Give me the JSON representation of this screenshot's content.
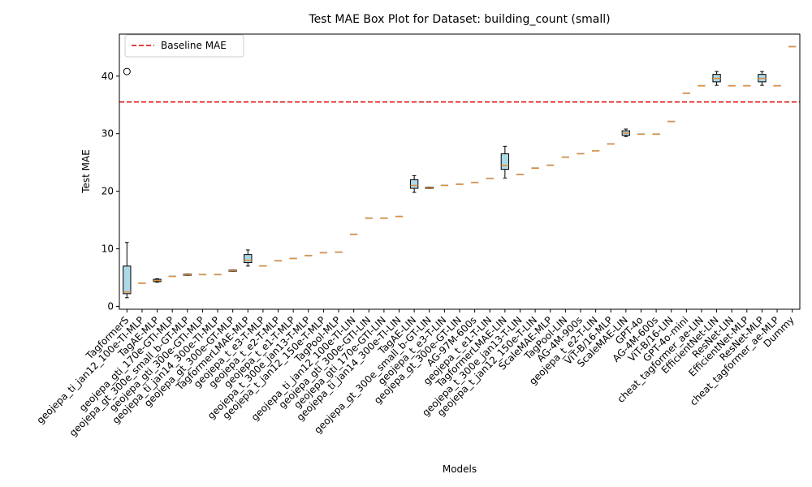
{
  "chart_data": {
    "type": "box",
    "title": "Test MAE Box Plot for Dataset: building_count (small)",
    "xlabel": "Models",
    "ylabel": "Test MAE",
    "ylim": [
      -0.5,
      47.3
    ],
    "yticks": [
      0,
      10,
      20,
      30,
      40
    ],
    "grid": false,
    "legend": {
      "placement": "top-left",
      "entries": [
        {
          "label": "Baseline MAE",
          "color": "#dd0000",
          "style": "dashed"
        }
      ]
    },
    "baseline": {
      "name": "Baseline MAE",
      "value": 35.5
    },
    "box_color": "#add8e6",
    "median_color": "#e08c3a",
    "boxes": [
      {
        "label": "TagformerS",
        "whislo": 1.5,
        "q1": 2.2,
        "med": 2.5,
        "q3": 7.0,
        "whishi": 11.1,
        "fliers": [
          40.8
        ]
      },
      {
        "label": "geojepa_ti_jan12_100e-TI-MLP",
        "whislo": 4.0,
        "q1": 4.0,
        "med": 4.0,
        "q3": 4.0,
        "whishi": 4.0,
        "fliers": []
      },
      {
        "label": "TagAE-MLP",
        "whislo": 4.2,
        "q1": 4.3,
        "med": 4.5,
        "q3": 4.7,
        "whishi": 4.8,
        "fliers": []
      },
      {
        "label": "geojepa_gti_170e-GTI-MLP",
        "whislo": 5.2,
        "q1": 5.2,
        "med": 5.2,
        "q3": 5.2,
        "whishi": 5.2,
        "fliers": []
      },
      {
        "label": "geojepa_gt_300e_small_b-GT-MLP",
        "whislo": 5.4,
        "q1": 5.4,
        "med": 5.5,
        "q3": 5.6,
        "whishi": 5.6,
        "fliers": []
      },
      {
        "label": "geojepa_gti_300e-GTI-MLP",
        "whislo": 5.5,
        "q1": 5.5,
        "med": 5.5,
        "q3": 5.5,
        "whishi": 5.5,
        "fliers": []
      },
      {
        "label": "geojepa_ti_jan14_300e-TI-MLP",
        "whislo": 5.5,
        "q1": 5.5,
        "med": 5.5,
        "q3": 5.5,
        "whishi": 5.5,
        "fliers": []
      },
      {
        "label": "geojepa_gt_300e-GT-MLP",
        "whislo": 6.1,
        "q1": 6.1,
        "med": 6.2,
        "q3": 6.3,
        "whishi": 6.3,
        "fliers": []
      },
      {
        "label": "TagformerLMAE-MLP",
        "whislo": 7.0,
        "q1": 7.6,
        "med": 8.0,
        "q3": 9.0,
        "whishi": 9.8,
        "fliers": []
      },
      {
        "label": "geojepa_t_e3-T-MLP",
        "whislo": 7.0,
        "q1": 7.0,
        "med": 7.0,
        "q3": 7.0,
        "whishi": 7.0,
        "fliers": []
      },
      {
        "label": "geojepa_t_e2-T-MLP",
        "whislo": 7.9,
        "q1": 7.9,
        "med": 7.9,
        "q3": 7.9,
        "whishi": 7.9,
        "fliers": []
      },
      {
        "label": "geojepa_t_e1-T-MLP",
        "whislo": 8.3,
        "q1": 8.3,
        "med": 8.3,
        "q3": 8.3,
        "whishi": 8.3,
        "fliers": []
      },
      {
        "label": "geojepa_t_300e_jan13-T-MLP",
        "whislo": 8.8,
        "q1": 8.8,
        "med": 8.8,
        "q3": 8.8,
        "whishi": 8.8,
        "fliers": []
      },
      {
        "label": "geojepa_t_jan12_150e-T-MLP",
        "whislo": 9.3,
        "q1": 9.3,
        "med": 9.3,
        "q3": 9.3,
        "whishi": 9.3,
        "fliers": []
      },
      {
        "label": "TagPool-MLP",
        "whislo": 9.4,
        "q1": 9.4,
        "med": 9.4,
        "q3": 9.4,
        "whishi": 9.4,
        "fliers": []
      },
      {
        "label": "geojepa_ti_jan12_100e-TI-LIN",
        "whislo": 12.5,
        "q1": 12.5,
        "med": 12.5,
        "q3": 12.5,
        "whishi": 12.5,
        "fliers": []
      },
      {
        "label": "geojepa_gti_300e-GTI-LIN",
        "whislo": 15.3,
        "q1": 15.3,
        "med": 15.3,
        "q3": 15.3,
        "whishi": 15.3,
        "fliers": []
      },
      {
        "label": "geojepa_gti_170e-GTI-LIN",
        "whislo": 15.3,
        "q1": 15.3,
        "med": 15.3,
        "q3": 15.3,
        "whishi": 15.3,
        "fliers": []
      },
      {
        "label": "geojepa_ti_jan14_300e-TI-LIN",
        "whislo": 15.6,
        "q1": 15.6,
        "med": 15.6,
        "q3": 15.6,
        "whishi": 15.6,
        "fliers": []
      },
      {
        "label": "TagAE-LIN",
        "whislo": 19.8,
        "q1": 20.5,
        "med": 21.0,
        "q3": 22.0,
        "whishi": 22.7,
        "fliers": []
      },
      {
        "label": "geojepa_gt_300e_small_b-GT-LIN",
        "whislo": 20.5,
        "q1": 20.5,
        "med": 20.6,
        "q3": 20.7,
        "whishi": 20.7,
        "fliers": []
      },
      {
        "label": "geojepa_t_e3-T-LIN",
        "whislo": 21.0,
        "q1": 21.0,
        "med": 21.0,
        "q3": 21.0,
        "whishi": 21.0,
        "fliers": []
      },
      {
        "label": "geojepa_gt_300e-GT-LIN",
        "whislo": 21.2,
        "q1": 21.2,
        "med": 21.2,
        "q3": 21.2,
        "whishi": 21.2,
        "fliers": []
      },
      {
        "label": "AG-97M-600s",
        "whislo": 21.5,
        "q1": 21.5,
        "med": 21.5,
        "q3": 21.5,
        "whishi": 21.5,
        "fliers": []
      },
      {
        "label": "geojepa_t_e1-T-LIN",
        "whislo": 22.2,
        "q1": 22.2,
        "med": 22.2,
        "q3": 22.2,
        "whishi": 22.2,
        "fliers": []
      },
      {
        "label": "TagformerLMAE-LIN",
        "whislo": 22.3,
        "q1": 23.8,
        "med": 24.5,
        "q3": 26.5,
        "whishi": 27.8,
        "fliers": []
      },
      {
        "label": "geojepa_t_300e_jan13-T-LIN",
        "whislo": 22.9,
        "q1": 22.9,
        "med": 22.9,
        "q3": 22.9,
        "whishi": 22.9,
        "fliers": []
      },
      {
        "label": "geojepa_t_jan12_150e-T-LIN",
        "whislo": 24.0,
        "q1": 24.0,
        "med": 24.0,
        "q3": 24.0,
        "whishi": 24.0,
        "fliers": []
      },
      {
        "label": "ScaleMAE-MLP",
        "whislo": 24.5,
        "q1": 24.5,
        "med": 24.5,
        "q3": 24.5,
        "whishi": 24.5,
        "fliers": []
      },
      {
        "label": "TagPool-LIN",
        "whislo": 25.9,
        "q1": 25.9,
        "med": 25.9,
        "q3": 25.9,
        "whishi": 25.9,
        "fliers": []
      },
      {
        "label": "AG-4M-900s",
        "whislo": 26.5,
        "q1": 26.5,
        "med": 26.5,
        "q3": 26.5,
        "whishi": 26.5,
        "fliers": []
      },
      {
        "label": "geojepa_t_e2-T-LIN",
        "whislo": 27.0,
        "q1": 27.0,
        "med": 27.0,
        "q3": 27.0,
        "whishi": 27.0,
        "fliers": []
      },
      {
        "label": "ViT-B/16-MLP",
        "whislo": 28.2,
        "q1": 28.2,
        "med": 28.2,
        "q3": 28.2,
        "whishi": 28.2,
        "fliers": []
      },
      {
        "label": "ScaleMAE-LIN",
        "whislo": 29.5,
        "q1": 29.7,
        "med": 30.1,
        "q3": 30.5,
        "whishi": 30.8,
        "fliers": []
      },
      {
        "label": "GPT-4o",
        "whislo": 29.9,
        "q1": 29.9,
        "med": 29.9,
        "q3": 29.9,
        "whishi": 29.9,
        "fliers": []
      },
      {
        "label": "AG-4M-600s",
        "whislo": 29.9,
        "q1": 29.9,
        "med": 29.9,
        "q3": 29.9,
        "whishi": 29.9,
        "fliers": []
      },
      {
        "label": "ViT-B/16-LIN",
        "whislo": 32.1,
        "q1": 32.1,
        "med": 32.1,
        "q3": 32.1,
        "whishi": 32.1,
        "fliers": []
      },
      {
        "label": "GPT-4o-mini",
        "whislo": 37.0,
        "q1": 37.0,
        "med": 37.0,
        "q3": 37.0,
        "whishi": 37.0,
        "fliers": []
      },
      {
        "label": "cheat_tagformer_ae-LIN",
        "whislo": 38.3,
        "q1": 38.3,
        "med": 38.3,
        "q3": 38.3,
        "whishi": 38.3,
        "fliers": []
      },
      {
        "label": "EfficientNet-LIN",
        "whislo": 38.4,
        "q1": 39.0,
        "med": 39.6,
        "q3": 40.3,
        "whishi": 40.8,
        "fliers": []
      },
      {
        "label": "ResNet-LIN",
        "whislo": 38.3,
        "q1": 38.3,
        "med": 38.3,
        "q3": 38.3,
        "whishi": 38.3,
        "fliers": []
      },
      {
        "label": "EfficientNet-MLP",
        "whislo": 38.3,
        "q1": 38.3,
        "med": 38.3,
        "q3": 38.3,
        "whishi": 38.3,
        "fliers": []
      },
      {
        "label": "ResNet-MLP",
        "whislo": 38.4,
        "q1": 39.0,
        "med": 39.6,
        "q3": 40.3,
        "whishi": 40.8,
        "fliers": []
      },
      {
        "label": "cheat_tagformer_ae-MLP",
        "whislo": 38.3,
        "q1": 38.3,
        "med": 38.3,
        "q3": 38.3,
        "whishi": 38.3,
        "fliers": []
      },
      {
        "label": "Dummy",
        "whislo": 45.1,
        "q1": 45.1,
        "med": 45.1,
        "q3": 45.1,
        "whishi": 45.1,
        "fliers": []
      }
    ]
  }
}
